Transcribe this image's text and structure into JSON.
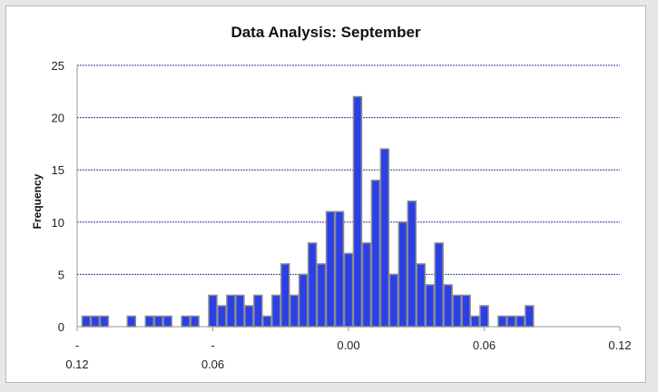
{
  "chart_data": {
    "type": "bar",
    "title": "Data Analysis: September",
    "xlabel": "",
    "ylabel": "Frequency",
    "ylim": [
      0,
      25
    ],
    "y_ticks": [
      "0",
      "5",
      "10",
      "15",
      "20",
      "25"
    ],
    "y_tick_values": [
      0,
      5,
      10,
      15,
      20,
      25
    ],
    "xlim": [
      -0.12,
      0.12
    ],
    "x_ticks": [
      {
        "value": -0.12,
        "line1": "-",
        "line2": "0.12"
      },
      {
        "value": -0.06,
        "line1": "-",
        "line2": "0.06"
      },
      {
        "value": 0.0,
        "line1": "0.00",
        "line2": ""
      },
      {
        "value": 0.06,
        "line1": "0.06",
        "line2": ""
      },
      {
        "value": 0.12,
        "line1": "0.12",
        "line2": ""
      }
    ],
    "bin_width": 0.004,
    "bin_centers": [
      -0.116,
      -0.112,
      -0.108,
      -0.104,
      -0.1,
      -0.096,
      -0.092,
      -0.088,
      -0.084,
      -0.08,
      -0.076,
      -0.072,
      -0.068,
      -0.064,
      -0.06,
      -0.056,
      -0.052,
      -0.048,
      -0.044,
      -0.04,
      -0.036,
      -0.032,
      -0.028,
      -0.024,
      -0.02,
      -0.016,
      -0.012,
      -0.008,
      -0.004,
      0.0,
      0.004,
      0.008,
      0.012,
      0.016,
      0.02,
      0.024,
      0.028,
      0.032,
      0.036,
      0.04,
      0.044,
      0.048,
      0.052,
      0.056,
      0.06,
      0.064,
      0.068,
      0.072,
      0.076,
      0.08
    ],
    "values": [
      1,
      1,
      1,
      0,
      0,
      1,
      0,
      1,
      1,
      1,
      0,
      1,
      1,
      0,
      3,
      2,
      3,
      3,
      2,
      3,
      1,
      3,
      6,
      3,
      5,
      8,
      6,
      11,
      11,
      7,
      22,
      8,
      14,
      17,
      5,
      10,
      12,
      6,
      4,
      8,
      4,
      3,
      3,
      1,
      2,
      0,
      1,
      1,
      1,
      2
    ],
    "grid": true,
    "legend": "none",
    "colors": {
      "bar_fill": "#2b3fe6",
      "bar_edge": "#8c8c8c",
      "grid": "#2e3a9e",
      "axis": "#9a9a9a",
      "background": "#e7e7e7",
      "plot_background": "#ffffff"
    }
  }
}
